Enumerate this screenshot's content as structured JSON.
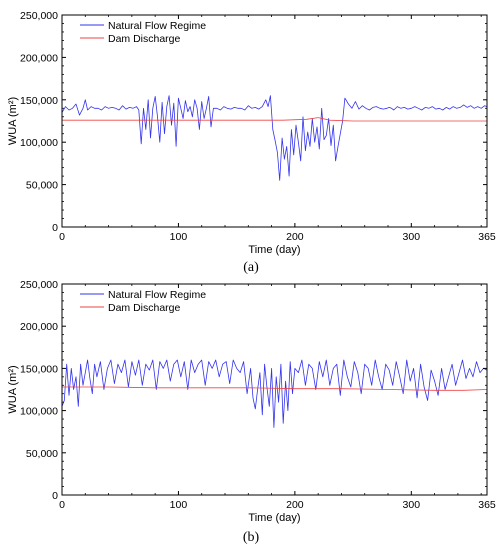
{
  "figure": {
    "panels": [
      {
        "caption": "(a)"
      },
      {
        "caption": "(b)"
      }
    ]
  },
  "chart_data": [
    {
      "type": "line",
      "panel": "(a)",
      "xlabel": "Time (day)",
      "ylabel": "WUA (m²)",
      "xlim": [
        0,
        365
      ],
      "ylim": [
        0,
        250000
      ],
      "xticks": [
        0,
        100,
        200,
        300,
        365
      ],
      "xtick_labels": [
        "0",
        "100",
        "200",
        "300",
        "365"
      ],
      "yticks": [
        0,
        50000,
        100000,
        150000,
        200000,
        250000
      ],
      "ytick_labels": [
        "0",
        "50,000",
        "100,000",
        "150,000",
        "200,000",
        "250,000"
      ],
      "grid": false,
      "legend": "top-left",
      "series": [
        {
          "name": "Natural Flow Regime",
          "color": "#3333ee",
          "x": [
            0,
            3,
            6,
            9,
            12,
            15,
            18,
            20,
            22,
            25,
            28,
            31,
            34,
            37,
            40,
            43,
            46,
            49,
            52,
            55,
            58,
            61,
            64,
            66,
            68,
            70,
            72,
            74,
            76,
            78,
            80,
            82,
            84,
            86,
            88,
            90,
            92,
            94,
            96,
            98,
            100,
            102,
            104,
            106,
            108,
            110,
            112,
            114,
            116,
            118,
            120,
            122,
            124,
            126,
            128,
            130,
            133,
            136,
            139,
            142,
            145,
            148,
            151,
            154,
            157,
            160,
            163,
            166,
            169,
            172,
            175,
            177,
            179,
            181,
            183,
            185,
            187,
            189,
            191,
            193,
            195,
            197,
            199,
            201,
            203,
            205,
            207,
            209,
            211,
            213,
            215,
            217,
            219,
            221,
            223,
            225,
            227,
            229,
            231,
            233,
            235,
            237,
            239,
            241,
            243,
            246,
            249,
            252,
            255,
            258,
            261,
            264,
            267,
            270,
            273,
            276,
            279,
            281,
            283,
            285,
            288,
            291,
            294,
            297,
            300,
            303,
            306,
            309,
            312,
            315,
            318,
            321,
            324,
            327,
            330,
            333,
            336,
            339,
            342,
            345,
            348,
            351,
            354,
            357,
            360,
            363,
            365
          ],
          "y": [
            135000,
            142000,
            138000,
            140000,
            145000,
            132000,
            140000,
            150000,
            138000,
            142000,
            140000,
            140000,
            138000,
            142000,
            140000,
            141000,
            140000,
            138000,
            143000,
            139000,
            141000,
            140000,
            142000,
            138000,
            98000,
            140000,
            115000,
            150000,
            105000,
            140000,
            154000,
            130000,
            100000,
            147000,
            110000,
            142000,
            155000,
            120000,
            146000,
            95000,
            152000,
            140000,
            128000,
            149000,
            136000,
            142000,
            130000,
            150000,
            140000,
            115000,
            148000,
            128000,
            140000,
            154000,
            118000,
            140000,
            140000,
            138000,
            142000,
            140000,
            139000,
            141000,
            140000,
            140000,
            138000,
            143000,
            140000,
            141000,
            139000,
            142000,
            150000,
            142000,
            155000,
            115000,
            102000,
            88000,
            55000,
            105000,
            80000,
            95000,
            60000,
            115000,
            85000,
            120000,
            100000,
            78000,
            130000,
            90000,
            112000,
            95000,
            128000,
            100000,
            118000,
            92000,
            140000,
            103000,
            108000,
            128000,
            96000,
            120000,
            78000,
            95000,
            110000,
            125000,
            152000,
            145000,
            140000,
            148000,
            139000,
            143000,
            140000,
            138000,
            141000,
            142000,
            140000,
            139000,
            140000,
            141000,
            140000,
            138000,
            142000,
            140000,
            141000,
            139000,
            140000,
            142000,
            140000,
            138000,
            141000,
            140000,
            142000,
            139000,
            140000,
            138000,
            141000,
            139000,
            142000,
            140000,
            141000,
            144000,
            141000,
            143000,
            140000,
            142000,
            140000,
            143000,
            142000
          ]
        },
        {
          "name": "Dam Discharge",
          "color": "#ee4444",
          "x": [
            0,
            40,
            80,
            120,
            160,
            190,
            210,
            220,
            230,
            250,
            290,
            330,
            365
          ],
          "y": [
            126000,
            126000,
            126000,
            126000,
            126000,
            126000,
            127000,
            129000,
            126000,
            125000,
            125000,
            125000,
            125000
          ]
        }
      ]
    },
    {
      "type": "line",
      "panel": "(b)",
      "xlabel": "Time (day)",
      "ylabel": "WUA (m²)",
      "xlim": [
        0,
        365
      ],
      "ylim": [
        0,
        250000
      ],
      "xticks": [
        0,
        100,
        200,
        300,
        365
      ],
      "xtick_labels": [
        "0",
        "100",
        "200",
        "300",
        "365"
      ],
      "yticks": [
        0,
        50000,
        100000,
        150000,
        200000,
        250000
      ],
      "ytick_labels": [
        "0",
        "50,000",
        "100,000",
        "150,000",
        "200,000",
        "250,000"
      ],
      "grid": false,
      "legend": "top-left",
      "series": [
        {
          "name": "Natural Flow Regime",
          "color": "#3333ee",
          "x": [
            0,
            2,
            4,
            6,
            8,
            10,
            12,
            14,
            16,
            18,
            20,
            22,
            24,
            26,
            28,
            30,
            33,
            36,
            39,
            42,
            45,
            48,
            51,
            54,
            57,
            60,
            63,
            66,
            69,
            72,
            75,
            78,
            81,
            84,
            87,
            90,
            93,
            96,
            99,
            102,
            105,
            108,
            111,
            114,
            117,
            120,
            123,
            126,
            129,
            132,
            135,
            138,
            141,
            144,
            147,
            150,
            153,
            156,
            159,
            162,
            164,
            166,
            168,
            170,
            172,
            174,
            176,
            178,
            180,
            182,
            184,
            186,
            188,
            190,
            192,
            194,
            196,
            198,
            200,
            203,
            206,
            209,
            212,
            215,
            218,
            221,
            224,
            227,
            230,
            233,
            236,
            239,
            242,
            245,
            248,
            251,
            254,
            257,
            260,
            263,
            266,
            269,
            272,
            275,
            278,
            281,
            284,
            287,
            290,
            293,
            296,
            299,
            302,
            305,
            308,
            311,
            314,
            317,
            320,
            323,
            326,
            329,
            332,
            335,
            338,
            341,
            344,
            347,
            350,
            353,
            356,
            359,
            362,
            365
          ],
          "y": [
            105000,
            112000,
            155000,
            118000,
            150000,
            125000,
            140000,
            105000,
            155000,
            130000,
            145000,
            160000,
            138000,
            120000,
            155000,
            140000,
            158000,
            125000,
            150000,
            160000,
            132000,
            155000,
            145000,
            160000,
            128000,
            158000,
            142000,
            160000,
            130000,
            155000,
            148000,
            160000,
            125000,
            158000,
            150000,
            160000,
            135000,
            155000,
            160000,
            140000,
            158000,
            125000,
            160000,
            145000,
            155000,
            160000,
            130000,
            158000,
            150000,
            160000,
            140000,
            155000,
            158000,
            132000,
            160000,
            150000,
            145000,
            158000,
            120000,
            150000,
            115000,
            102000,
            125000,
            145000,
            95000,
            155000,
            128000,
            105000,
            150000,
            80000,
            140000,
            110000,
            155000,
            85000,
            135000,
            100000,
            158000,
            120000,
            150000,
            145000,
            160000,
            130000,
            155000,
            150000,
            125000,
            158000,
            140000,
            160000,
            130000,
            150000,
            155000,
            118000,
            160000,
            140000,
            128000,
            158000,
            145000,
            120000,
            155000,
            150000,
            130000,
            160000,
            140000,
            125000,
            155000,
            148000,
            130000,
            158000,
            140000,
            120000,
            160000,
            135000,
            150000,
            115000,
            155000,
            128000,
            112000,
            148000,
            135000,
            118000,
            150000,
            125000,
            140000,
            155000,
            130000,
            145000,
            160000,
            138000,
            150000,
            140000,
            158000,
            145000,
            150000,
            148000
          ]
        },
        {
          "name": "Dam Discharge",
          "color": "#ee4444",
          "x": [
            0,
            40,
            80,
            120,
            160,
            200,
            240,
            280,
            320,
            345,
            365
          ],
          "y": [
            128000,
            128000,
            127000,
            127000,
            127000,
            126000,
            126000,
            125000,
            124000,
            124000,
            125000
          ]
        }
      ]
    }
  ]
}
